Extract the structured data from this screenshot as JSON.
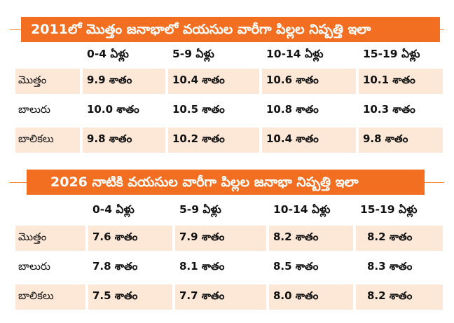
{
  "table_2011": {
    "title": "2011లో మొత్తం జనాభాలో వయసుల వారీగా పిల్లల నిష్పత్తి ఇలా",
    "columns": [
      "0-4 ఏళ్లు",
      "5-9 ఏళ్లు",
      "10-14 ఏళ్లు",
      "15-19 ఏళ్లు"
    ],
    "rows": [
      {
        "label": "మొత్తం",
        "values": [
          "9.9 శాతం",
          "10.4 శాతం",
          "10.6 శాతం",
          "10.1 శాతం"
        ]
      },
      {
        "label": "బాలురు",
        "values": [
          "10.0 శాతం",
          "10.5 శాతం",
          "10.8 శాతం",
          "10.3 శాతం"
        ]
      },
      {
        "label": "బాలికలు",
        "values": [
          "9.8 శాతం",
          "10.2 శాతం",
          "10.4 శాతం",
          "9.8 శాతం"
        ]
      }
    ]
  },
  "table_2026": {
    "title": "2026 నాటికి వయసుల వారీగా పిల్లల జనాభా నిష్పత్తి ఇలా",
    "columns": [
      "0-4 ఏళ్లు",
      "5-9 ఏళ్లు",
      "10-14 ఏళ్లు",
      "15-19 ఏళ్లు"
    ],
    "rows": [
      {
        "label": "మొత్తం",
        "values": [
          "7.6 శాతం",
          "7.9 శాతం",
          "8.2 శాతం",
          "8.2 శాతం"
        ]
      },
      {
        "label": "బాలురు",
        "values": [
          "7.8 శాతం",
          "8.1 శాతం",
          "8.5 శాతం",
          "8.3 శాతం"
        ]
      },
      {
        "label": "బాలికలు",
        "values": [
          "7.5 శాతం",
          "7.7 శాతం",
          "8.0 శాతం",
          "8.2 శాతం"
        ]
      }
    ]
  },
  "colors": {
    "accent": "#f26f21",
    "shade": "#fde7d6"
  }
}
